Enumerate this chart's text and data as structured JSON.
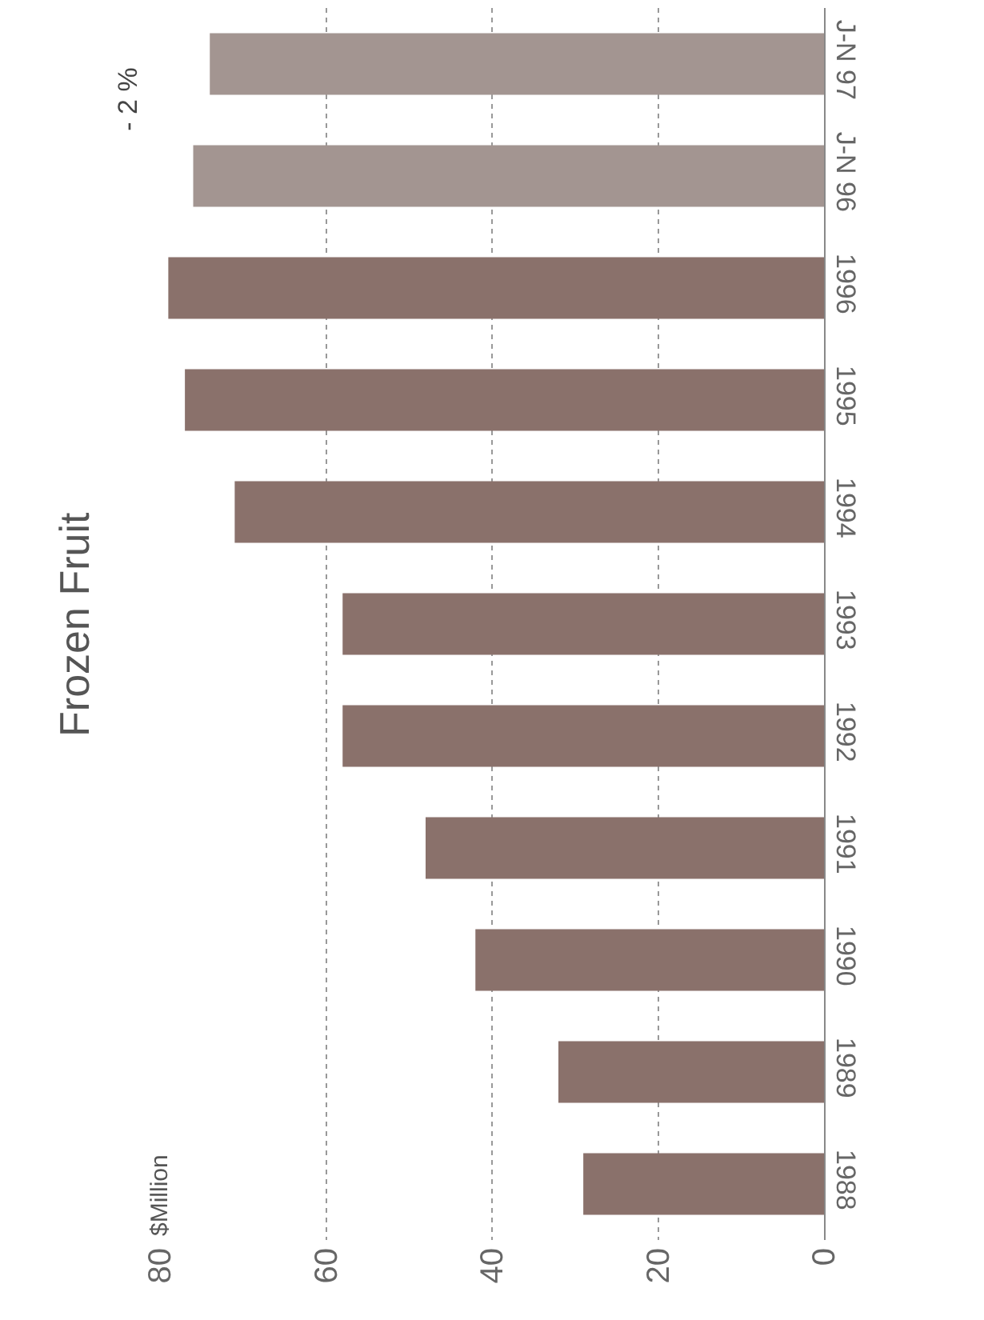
{
  "chart_data": {
    "type": "bar",
    "orientation": "horizontal",
    "title": "Frozen Fruit",
    "ylabel": "$Million",
    "categories": [
      "J-N 97",
      "J-N 96",
      "1996",
      "1995",
      "1994",
      "1993",
      "1992",
      "1991",
      "1990",
      "1989",
      "1988"
    ],
    "values": [
      74,
      76,
      79,
      77,
      71,
      58,
      58,
      48,
      42,
      32,
      29
    ],
    "colors": [
      "#a39591",
      "#a39591",
      "#8a716b",
      "#8a716b",
      "#8a716b",
      "#8a716b",
      "#8a716b",
      "#8a716b",
      "#8a716b",
      "#8a716b",
      "#8a716b"
    ],
    "xlim": [
      80,
      0
    ],
    "xticks": [
      80,
      60,
      40,
      20,
      0
    ],
    "grid": "x",
    "annotations": [
      "- 2 %"
    ]
  }
}
